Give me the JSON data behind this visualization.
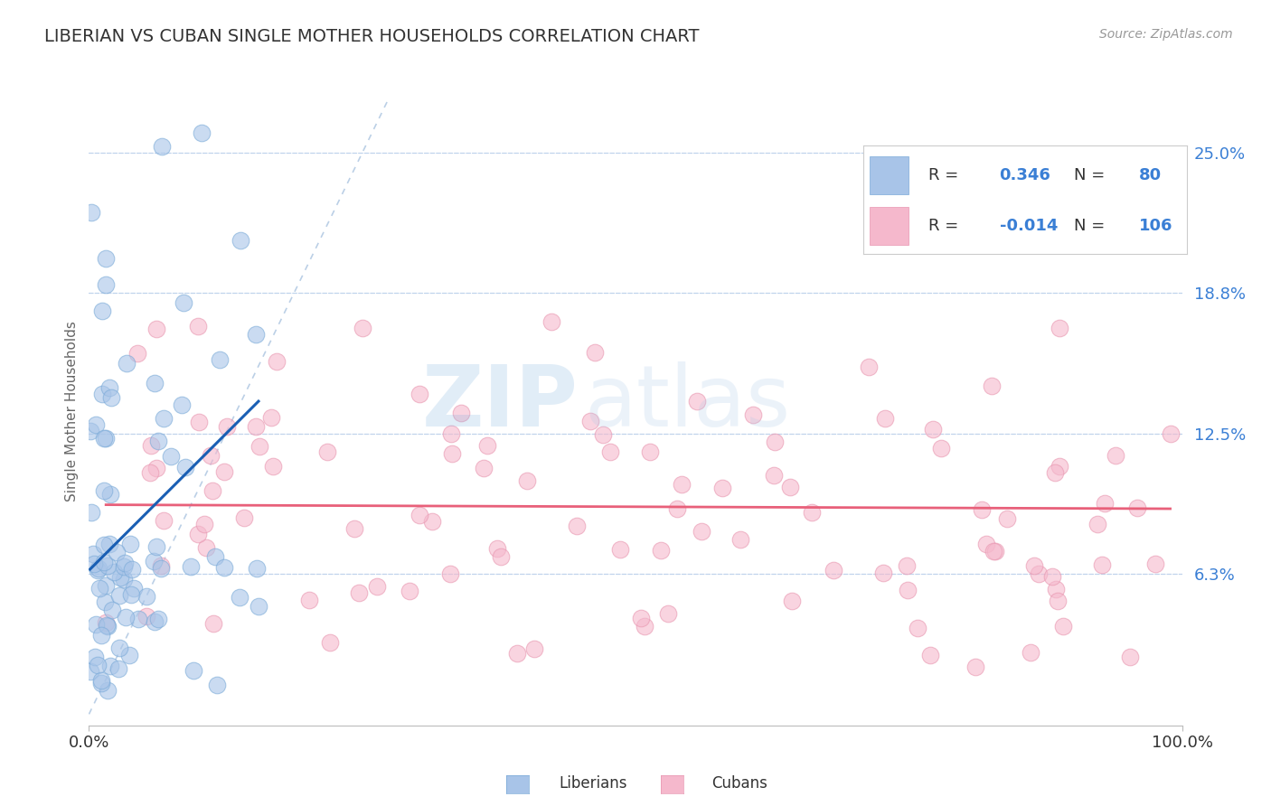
{
  "title": "LIBERIAN VS CUBAN SINGLE MOTHER HOUSEHOLDS CORRELATION CHART",
  "source": "Source: ZipAtlas.com",
  "ylabel": "Single Mother Households",
  "xlim": [
    0.0,
    1.0
  ],
  "ylim": [
    -0.005,
    0.275
  ],
  "yticks": [
    0.0625,
    0.125,
    0.1875,
    0.25
  ],
  "ytick_labels": [
    "6.3%",
    "12.5%",
    "18.8%",
    "25.0%"
  ],
  "liberian_R": 0.346,
  "liberian_N": 80,
  "cuban_R": -0.014,
  "cuban_N": 106,
  "liberian_color": "#a8c4e8",
  "liberian_edge": "#7aaad8",
  "cuban_color": "#f5b8cc",
  "cuban_edge": "#e896b0",
  "liberian_line_color": "#1a5fb4",
  "cuban_line_color": "#e8607a",
  "ref_line_color": "#aac4e0",
  "background_color": "#ffffff",
  "grid_color": "#c0d4ec",
  "watermark_zip_color": "#7aaedc",
  "watermark_atlas_color": "#a8c8e8",
  "legend_text_color": "#3a7fd5",
  "legend_label_color": "#222222"
}
